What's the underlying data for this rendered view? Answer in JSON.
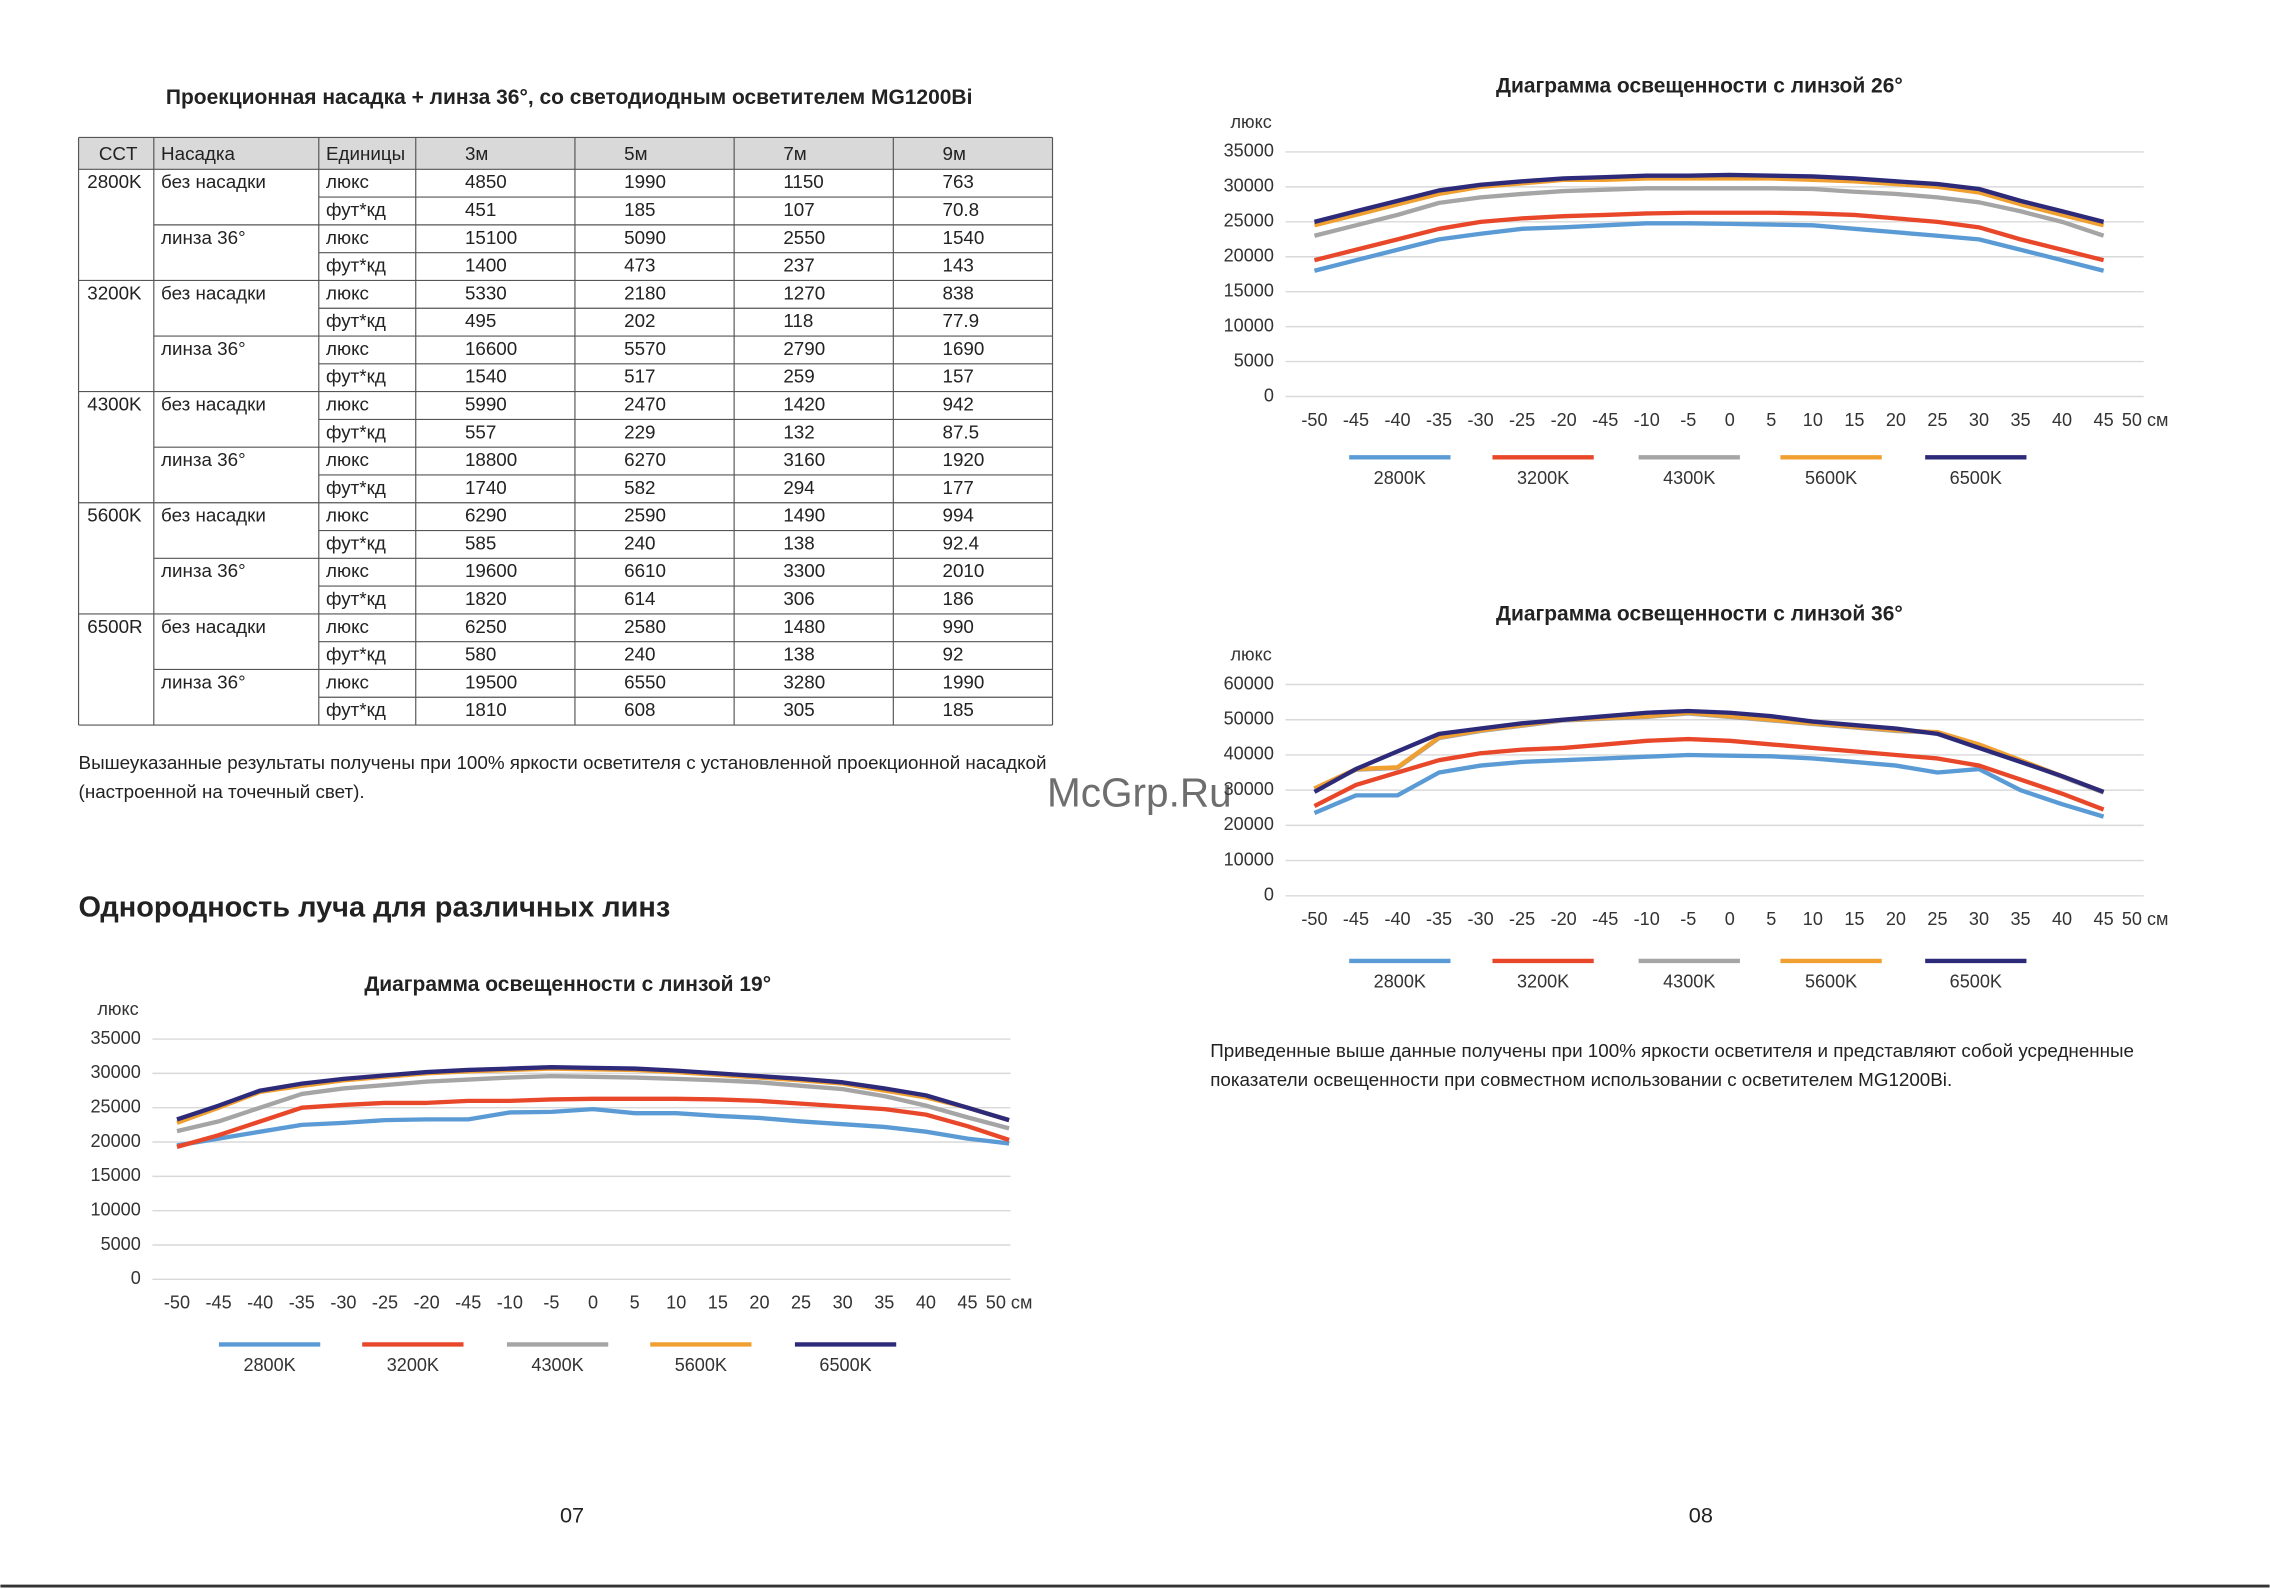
{
  "left_page": {
    "table_title": "Проекционная насадка + линза 36°, со светодиодным осветителем MG1200Bi",
    "table": {
      "header": [
        "CCT",
        "Насадка",
        "Единицы",
        "3м",
        "5м",
        "7м",
        "9м"
      ],
      "groups": [
        {
          "cct": "2800K",
          "lenses": [
            {
              "name": "без насадки",
              "rows": [
                {
                  "unit": "люкс",
                  "values": [
                    4850,
                    1990,
                    1150,
                    763
                  ]
                },
                {
                  "unit": "фут*кд",
                  "values": [
                    451,
                    185,
                    107,
                    70.8
                  ]
                }
              ]
            },
            {
              "name": "линза 36°",
              "rows": [
                {
                  "unit": "люкс",
                  "values": [
                    15100,
                    5090,
                    2550,
                    1540
                  ]
                },
                {
                  "unit": "фут*кд",
                  "values": [
                    1400,
                    473,
                    237,
                    143
                  ]
                }
              ]
            }
          ]
        },
        {
          "cct": "3200K",
          "lenses": [
            {
              "name": "без насадки",
              "rows": [
                {
                  "unit": "люкс",
                  "values": [
                    5330,
                    2180,
                    1270,
                    838
                  ]
                },
                {
                  "unit": "фут*кд",
                  "values": [
                    495,
                    202,
                    118,
                    77.9
                  ]
                }
              ]
            },
            {
              "name": "линза 36°",
              "rows": [
                {
                  "unit": "люкс",
                  "values": [
                    16600,
                    5570,
                    2790,
                    1690
                  ]
                },
                {
                  "unit": "фут*кд",
                  "values": [
                    1540,
                    517,
                    259,
                    157
                  ]
                }
              ]
            }
          ]
        },
        {
          "cct": "4300K",
          "lenses": [
            {
              "name": "без насадки",
              "rows": [
                {
                  "unit": "люкс",
                  "values": [
                    5990,
                    2470,
                    1420,
                    942
                  ]
                },
                {
                  "unit": "фут*кд",
                  "values": [
                    557,
                    229,
                    132,
                    87.5
                  ]
                }
              ]
            },
            {
              "name": "линза 36°",
              "rows": [
                {
                  "unit": "люкс",
                  "values": [
                    18800,
                    6270,
                    3160,
                    1920
                  ]
                },
                {
                  "unit": "фут*кд",
                  "values": [
                    1740,
                    582,
                    294,
                    177
                  ]
                }
              ]
            }
          ]
        },
        {
          "cct": "5600K",
          "lenses": [
            {
              "name": "без насадки",
              "rows": [
                {
                  "unit": "люкс",
                  "values": [
                    6290,
                    2590,
                    1490,
                    994
                  ]
                },
                {
                  "unit": "фут*кд",
                  "values": [
                    585,
                    240,
                    138,
                    92.4
                  ]
                }
              ]
            },
            {
              "name": "линза 36°",
              "rows": [
                {
                  "unit": "люкс",
                  "values": [
                    19600,
                    6610,
                    3300,
                    2010
                  ]
                },
                {
                  "unit": "фут*кд",
                  "values": [
                    1820,
                    614,
                    306,
                    186
                  ]
                }
              ]
            }
          ]
        },
        {
          "cct": "6500R",
          "lenses": [
            {
              "name": "без насадки",
              "rows": [
                {
                  "unit": "люкс",
                  "values": [
                    6250,
                    2580,
                    1480,
                    990
                  ]
                },
                {
                  "unit": "фут*кд",
                  "values": [
                    580,
                    240,
                    138,
                    92
                  ]
                }
              ]
            },
            {
              "name": "линза 36°",
              "rows": [
                {
                  "unit": "люкс",
                  "values": [
                    19500,
                    6550,
                    3280,
                    1990
                  ]
                },
                {
                  "unit": "фут*кд",
                  "values": [
                    1810,
                    608,
                    305,
                    185
                  ]
                }
              ]
            }
          ]
        }
      ]
    },
    "note": [
      "Вышеуказанные результаты получены при 100% яркости осветителя с установленной проекционной насадкой",
      "(настроенной на точечный свет)."
    ],
    "heading": "Однородность луча для различных линз",
    "page_number": "07"
  },
  "right_page": {
    "note": [
      "Приведенные выше данные получены при 100% яркости осветителя и представляют собой усредненные",
      "показатели освещенности при совместном использовании с осветителем MG1200Bi."
    ],
    "page_number": "08"
  },
  "watermark": "McGrp.Ru",
  "charts": [
    {
      "type": "line",
      "title": "Диаграмма освещенности с линзой 19°",
      "y_label": "люкс",
      "categories": [
        "-50",
        "-45",
        "-40",
        "-35",
        "-30",
        "-25",
        "-20",
        "-45",
        "-10",
        "-5",
        "0",
        "5",
        "10",
        "15",
        "20",
        "25",
        "30",
        "35",
        "40",
        "45",
        "50 см"
      ],
      "ylim": [
        0,
        35000
      ],
      "yticks": [
        0,
        5000,
        10000,
        15000,
        20000,
        25000,
        30000,
        35000
      ],
      "grid": true,
      "series": [
        {
          "name": "2800K",
          "color": "#5b9bd5",
          "values": [
            19500,
            20500,
            21500,
            22500,
            22800,
            23200,
            23300,
            23300,
            24300,
            24400,
            24800,
            24200,
            24200,
            23800,
            23500,
            23000,
            22600,
            22200,
            21500,
            20500,
            19800
          ]
        },
        {
          "name": "3200K",
          "color": "#e8472a",
          "values": [
            19300,
            21000,
            23000,
            25000,
            25400,
            25700,
            25700,
            26000,
            26000,
            26200,
            26300,
            26300,
            26300,
            26200,
            26000,
            25600,
            25200,
            24800,
            24000,
            22300,
            20300
          ]
        },
        {
          "name": "4300K",
          "color": "#a5a5a5",
          "values": [
            21600,
            23000,
            25000,
            27000,
            27800,
            28300,
            28800,
            29100,
            29400,
            29600,
            29500,
            29400,
            29200,
            29000,
            28700,
            28200,
            27700,
            26700,
            25300,
            23600,
            22000
          ]
        },
        {
          "name": "5600K",
          "color": "#f0a030",
          "values": [
            22800,
            25000,
            27300,
            28200,
            29000,
            29500,
            30000,
            30300,
            30500,
            30700,
            30600,
            30500,
            30200,
            29800,
            29400,
            29000,
            28500,
            27500,
            26500,
            25000,
            23200
          ]
        },
        {
          "name": "6500K",
          "color": "#2e2a7a",
          "values": [
            23300,
            25300,
            27500,
            28500,
            29200,
            29700,
            30200,
            30500,
            30700,
            30900,
            30800,
            30700,
            30400,
            30000,
            29600,
            29200,
            28700,
            27800,
            26800,
            25000,
            23200
          ]
        }
      ]
    },
    {
      "type": "line",
      "title": "Диаграмма освещенности с линзой 26°",
      "y_label": "люкс",
      "categories": [
        "-50",
        "-45",
        "-40",
        "-35",
        "-30",
        "-25",
        "-20",
        "-45",
        "-10",
        "-5",
        "0",
        "5",
        "10",
        "15",
        "20",
        "25",
        "30",
        "35",
        "40",
        "45",
        "50 см"
      ],
      "ylim": [
        0,
        35000
      ],
      "yticks": [
        0,
        5000,
        10000,
        15000,
        20000,
        25000,
        30000,
        35000
      ],
      "grid": true,
      "series": [
        {
          "name": "2800K",
          "color": "#5b9bd5",
          "values": [
            18000,
            19500,
            21000,
            22500,
            23300,
            24000,
            24200,
            24500,
            24800,
            24800,
            24700,
            24600,
            24500,
            24000,
            23500,
            23000,
            22500,
            21000,
            19500,
            18000,
            null
          ]
        },
        {
          "name": "3200K",
          "color": "#e8472a",
          "values": [
            19500,
            21000,
            22500,
            24000,
            25000,
            25500,
            25800,
            26000,
            26200,
            26300,
            26300,
            26300,
            26200,
            26000,
            25500,
            25000,
            24200,
            22500,
            21000,
            19500,
            null
          ]
        },
        {
          "name": "4300K",
          "color": "#a5a5a5",
          "values": [
            23000,
            24500,
            26000,
            27700,
            28500,
            29000,
            29400,
            29600,
            29800,
            29800,
            29800,
            29800,
            29700,
            29300,
            29000,
            28500,
            27800,
            26500,
            25000,
            23000,
            null
          ]
        },
        {
          "name": "5600K",
          "color": "#f0a030",
          "values": [
            24500,
            26000,
            27500,
            29000,
            30000,
            30500,
            31000,
            31000,
            31200,
            31200,
            31200,
            31200,
            31000,
            30800,
            30400,
            30000,
            29200,
            27500,
            26000,
            24500,
            null
          ]
        },
        {
          "name": "6500K",
          "color": "#2e2a7a",
          "values": [
            25000,
            26500,
            28000,
            29500,
            30300,
            30800,
            31200,
            31400,
            31600,
            31600,
            31700,
            31600,
            31500,
            31200,
            30800,
            30400,
            29700,
            28000,
            26500,
            25000,
            null
          ]
        }
      ]
    },
    {
      "type": "line",
      "title": "Диаграмма освещенности с линзой 36°",
      "y_label": "люкс",
      "categories": [
        "-50",
        "-45",
        "-40",
        "-35",
        "-30",
        "-25",
        "-20",
        "-45",
        "-10",
        "-5",
        "0",
        "5",
        "10",
        "15",
        "20",
        "25",
        "30",
        "35",
        "40",
        "45",
        "50 см"
      ],
      "ylim": [
        0,
        60000
      ],
      "yticks": [
        0,
        10000,
        20000,
        30000,
        40000,
        50000,
        60000
      ],
      "grid": true,
      "series": [
        {
          "name": "2800K",
          "color": "#5b9bd5",
          "values": [
            23500,
            28500,
            28500,
            35000,
            37000,
            38000,
            38500,
            39000,
            39500,
            40000,
            39800,
            39600,
            39000,
            38000,
            37000,
            35000,
            36000,
            30000,
            26000,
            22500,
            null
          ]
        },
        {
          "name": "3200K",
          "color": "#e8472a",
          "values": [
            25500,
            31500,
            35000,
            38500,
            40500,
            41500,
            42000,
            43000,
            44000,
            44500,
            44000,
            43000,
            42000,
            41000,
            40000,
            39000,
            37000,
            33000,
            29000,
            24500,
            null
          ]
        },
        {
          "name": "4300K",
          "color": "#a5a5a5",
          "values": [
            30300,
            35800,
            36300,
            44800,
            46800,
            48300,
            49800,
            50300,
            50800,
            51800,
            50800,
            49800,
            48800,
            47800,
            46800,
            46300,
            42800,
            38300,
            33800,
            29300,
            null
          ]
        },
        {
          "name": "5600K",
          "color": "#f0a030",
          "values": [
            30500,
            36000,
            36500,
            45000,
            47000,
            48500,
            50000,
            50500,
            51000,
            52000,
            51000,
            50000,
            49000,
            48000,
            47000,
            46500,
            43000,
            38500,
            34000,
            29500,
            null
          ]
        },
        {
          "name": "6500K",
          "color": "#2e2a7a",
          "values": [
            29500,
            36000,
            41000,
            46000,
            47500,
            49000,
            50000,
            51000,
            52000,
            52500,
            52000,
            51000,
            49500,
            48500,
            47500,
            46000,
            42000,
            38000,
            34000,
            29500,
            null
          ]
        }
      ]
    }
  ]
}
